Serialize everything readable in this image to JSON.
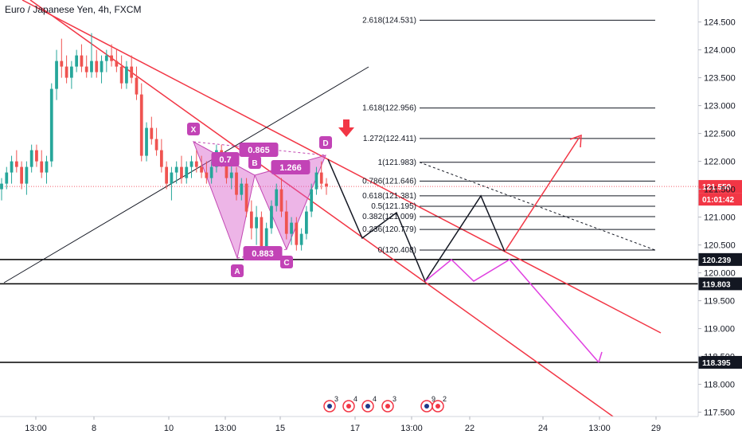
{
  "title": "Euro / Japanese Yen, 4h, FXCM",
  "chart_data": {
    "type": "candlestick",
    "instrument": "Euro / Japanese Yen",
    "interval": "4h",
    "source": "FXCM",
    "y_range": [
      117.4,
      124.85
    ],
    "y_ticks": [
      "124.500",
      "124.000",
      "123.500",
      "123.000",
      "122.500",
      "122.000",
      "121.500",
      "121.000",
      "120.500",
      "120.000",
      "119.500",
      "119.000",
      "118.500",
      "118.000",
      "117.500"
    ],
    "x_ticks": [
      "13:00",
      "8",
      "10",
      "13:00",
      "15",
      "17",
      "13:00",
      "22",
      "24",
      "13:00",
      "29"
    ],
    "price_tags": [
      {
        "value": "121.550",
        "color": "#f23645"
      },
      {
        "value": "01:01:42",
        "color": "#f23645"
      },
      {
        "value": "120.239",
        "color": "#131722"
      },
      {
        "value": "119.803",
        "color": "#131722"
      },
      {
        "value": "118.395",
        "color": "#131722"
      }
    ],
    "fib_levels": [
      {
        "label": "2.618(124.531)",
        "price": 124.531
      },
      {
        "label": "1.618(122.956)",
        "price": 122.956
      },
      {
        "label": "1.272(122.411)",
        "price": 122.411
      },
      {
        "label": "1(121.983)",
        "price": 121.983
      },
      {
        "label": "0.786(121.646)",
        "price": 121.646
      },
      {
        "label": "0.618(121.381)",
        "price": 121.381
      },
      {
        "label": "0.5(121.195)",
        "price": 121.195
      },
      {
        "label": "0.382(121.009)",
        "price": 121.009
      },
      {
        "label": "0.236(120.779)",
        "price": 120.779
      },
      {
        "label": "0(120.408)",
        "price": 120.408
      }
    ],
    "horizontal_lines": [
      120.239,
      119.803,
      118.395
    ],
    "pattern_points": [
      {
        "label": "X",
        "price": 122.3
      },
      {
        "label": "A",
        "price": 120.3
      },
      {
        "label": "B",
        "price": 121.7
      },
      {
        "label": "C",
        "price": 120.4
      },
      {
        "label": "D",
        "price": 121.98
      }
    ],
    "pattern_ratios": [
      "0.7",
      "0.865",
      "0.883",
      "1.266"
    ],
    "events": [
      "3",
      "4",
      "4",
      "3",
      "9",
      "2"
    ],
    "candles": [
      [
        121.5,
        121.7,
        121.3,
        121.6
      ],
      [
        121.6,
        121.9,
        121.5,
        121.8
      ],
      [
        121.8,
        122.1,
        121.6,
        122.0
      ],
      [
        122.0,
        122.2,
        121.8,
        121.9
      ],
      [
        121.9,
        122.0,
        121.5,
        121.6
      ],
      [
        121.6,
        122.0,
        121.4,
        121.9
      ],
      [
        121.9,
        122.3,
        121.8,
        122.2
      ],
      [
        122.2,
        122.3,
        121.9,
        122.0
      ],
      [
        122.0,
        122.2,
        121.7,
        121.8
      ],
      [
        121.8,
        122.1,
        121.6,
        122.0
      ],
      [
        122.0,
        123.4,
        121.9,
        123.3
      ],
      [
        123.3,
        124.0,
        123.1,
        123.8
      ],
      [
        123.8,
        124.2,
        123.5,
        123.7
      ],
      [
        123.7,
        123.9,
        123.4,
        123.5
      ],
      [
        123.5,
        123.8,
        123.3,
        123.7
      ],
      [
        123.7,
        124.0,
        123.6,
        123.9
      ],
      [
        123.9,
        124.1,
        123.6,
        123.7
      ],
      [
        123.7,
        123.9,
        123.5,
        123.6
      ],
      [
        123.6,
        124.3,
        123.5,
        123.8
      ],
      [
        123.8,
        124.0,
        123.5,
        123.6
      ],
      [
        123.6,
        123.9,
        123.4,
        123.8
      ],
      [
        123.8,
        124.0,
        123.6,
        123.9
      ],
      [
        123.9,
        124.1,
        123.7,
        123.8
      ],
      [
        123.8,
        124.0,
        123.6,
        123.7
      ],
      [
        123.7,
        123.9,
        123.3,
        123.4
      ],
      [
        123.4,
        123.8,
        123.3,
        123.7
      ],
      [
        123.7,
        123.9,
        123.4,
        123.5
      ],
      [
        123.5,
        123.7,
        123.1,
        123.2
      ],
      [
        123.2,
        123.4,
        122.0,
        122.1
      ],
      [
        122.1,
        122.7,
        122.0,
        122.6
      ],
      [
        122.6,
        122.8,
        122.3,
        122.4
      ],
      [
        122.4,
        122.6,
        122.1,
        122.2
      ],
      [
        122.2,
        122.4,
        121.8,
        121.9
      ],
      [
        121.9,
        122.0,
        121.5,
        121.6
      ],
      [
        121.6,
        121.9,
        121.3,
        121.8
      ],
      [
        121.8,
        122.0,
        121.6,
        121.9
      ],
      [
        121.9,
        122.1,
        121.6,
        121.7
      ],
      [
        121.7,
        122.0,
        121.6,
        121.9
      ],
      [
        121.9,
        122.1,
        121.7,
        122.0
      ],
      [
        122.0,
        122.2,
        121.8,
        121.9
      ],
      [
        121.9,
        122.1,
        121.7,
        121.8
      ],
      [
        121.8,
        122.0,
        121.6,
        121.7
      ],
      [
        121.7,
        122.0,
        121.6,
        121.9
      ],
      [
        121.9,
        122.3,
        121.8,
        122.2
      ],
      [
        122.2,
        122.3,
        121.9,
        122.0
      ],
      [
        122.0,
        122.1,
        121.6,
        121.7
      ],
      [
        121.7,
        122.0,
        121.5,
        121.8
      ],
      [
        121.8,
        121.9,
        121.3,
        121.4
      ],
      [
        121.4,
        121.7,
        121.3,
        121.6
      ],
      [
        121.6,
        121.7,
        121.0,
        121.1
      ],
      [
        121.1,
        121.3,
        120.6,
        120.8
      ],
      [
        120.8,
        121.2,
        120.5,
        121.0
      ],
      [
        121.0,
        121.1,
        120.3,
        120.4
      ],
      [
        120.4,
        120.9,
        120.3,
        120.8
      ],
      [
        120.8,
        121.3,
        120.7,
        121.2
      ],
      [
        121.2,
        121.6,
        121.1,
        121.5
      ],
      [
        121.5,
        121.7,
        121.0,
        121.1
      ],
      [
        121.1,
        121.3,
        120.6,
        120.7
      ],
      [
        120.7,
        121.0,
        120.5,
        120.9
      ],
      [
        120.9,
        121.0,
        120.4,
        120.5
      ],
      [
        120.5,
        120.8,
        120.4,
        120.7
      ],
      [
        120.7,
        121.2,
        120.6,
        121.1
      ],
      [
        121.1,
        121.6,
        121.0,
        121.5
      ],
      [
        121.5,
        121.9,
        121.4,
        121.8
      ],
      [
        121.8,
        122.0,
        121.5,
        121.6
      ],
      [
        121.6,
        121.7,
        121.4,
        121.55
      ]
    ]
  }
}
